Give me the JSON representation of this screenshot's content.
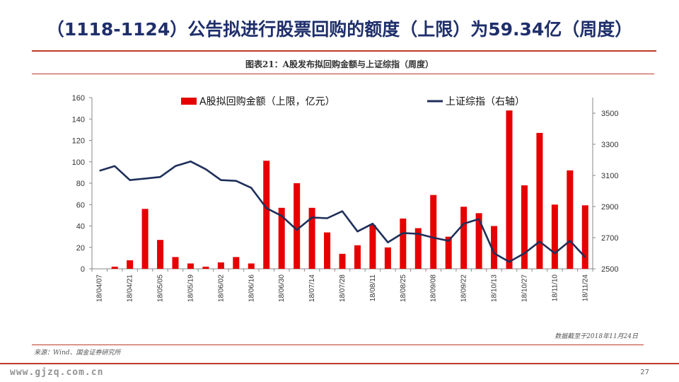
{
  "slide": {
    "title": "（1118-1124）公告拟进行股票回购的额度（上限）为59.34亿（周度）",
    "chart_title": "图表21：A股发布拟回购金额与上证综指（周度）",
    "cutoff_note": "数据截至于2018年11月24日",
    "source": "来源：Wind、国金证券研究所",
    "watermark": "www.gjzq.com.cn",
    "page_number": "27"
  },
  "colors": {
    "bar": "#e60000",
    "line": "#1f2f5a",
    "accent": "#c0392b",
    "title": "#1f2f6b"
  },
  "chart_data": {
    "type": "bar+line",
    "x": [
      "18/04/07",
      "18/04/14",
      "18/04/21",
      "18/04/28",
      "18/05/05",
      "18/05/12",
      "18/05/19",
      "18/05/26",
      "18/06/02",
      "18/06/09",
      "18/06/16",
      "18/06/23",
      "18/06/30",
      "18/07/07",
      "18/07/14",
      "18/07/21",
      "18/07/28",
      "18/08/04",
      "18/08/11",
      "18/08/18",
      "18/08/25",
      "18/09/01",
      "18/09/08",
      "18/09/15",
      "18/09/22",
      "18/09/29",
      "18/10/13",
      "18/10/20",
      "18/10/27",
      "18/11/03",
      "18/11/10",
      "18/11/17",
      "18/11/24"
    ],
    "tick_labels": [
      "18/04/07",
      "18/04/21",
      "18/05/05",
      "18/05/19",
      "18/06/02",
      "18/06/16",
      "18/06/30",
      "18/07/14",
      "18/07/28",
      "18/08/11",
      "18/08/25",
      "18/09/08",
      "18/09/22",
      "18/10/13",
      "18/10/27",
      "18/11/10",
      "18/11/24"
    ],
    "tick_every": 2,
    "series": [
      {
        "name": "A股拟回购金额（上限，亿元）",
        "type": "bar",
        "axis": "left",
        "values": [
          0,
          2,
          8,
          56,
          27,
          11,
          5,
          2,
          6,
          11,
          5,
          101,
          57,
          80,
          57,
          34,
          14,
          22,
          41,
          20,
          47,
          38,
          69,
          30,
          58,
          52,
          40,
          148,
          78,
          127,
          60,
          92,
          59.34
        ]
      },
      {
        "name": "上证综指（右轴）",
        "type": "line",
        "axis": "right",
        "values": [
          3130,
          3160,
          3070,
          3080,
          3090,
          3160,
          3190,
          3140,
          3070,
          3065,
          3020,
          2890,
          2840,
          2750,
          2830,
          2825,
          2870,
          2740,
          2790,
          2670,
          2730,
          2725,
          2700,
          2680,
          2790,
          2820,
          2600,
          2545,
          2600,
          2675,
          2600,
          2680,
          2575
        ]
      }
    ],
    "y_left": {
      "min": 0,
      "max": 160,
      "ticks": [
        0,
        20,
        40,
        60,
        80,
        100,
        120,
        140,
        160
      ]
    },
    "y_right": {
      "min": 2500,
      "max": 3600,
      "ticks": [
        2500,
        2700,
        2900,
        3100,
        3300,
        3500
      ]
    },
    "legend_position": "top",
    "grid": false
  }
}
